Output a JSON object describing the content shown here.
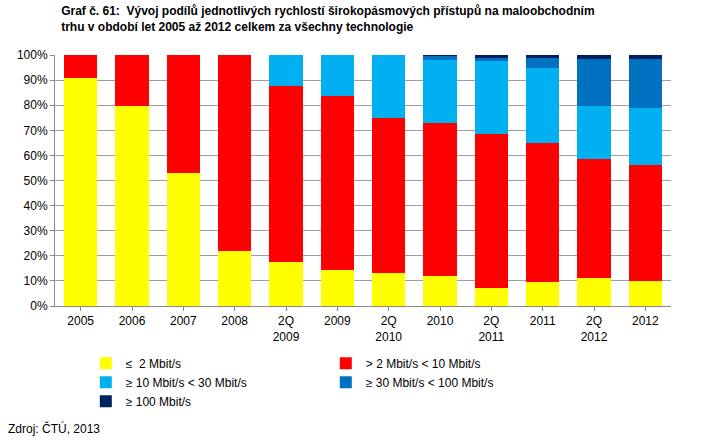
{
  "chart_data": {
    "type": "bar",
    "stacked": true,
    "grid": true,
    "legend": "bottom",
    "title": [
      "Graf č. 61:  Vývoj podílů jednotlivých rychlostí širokopásmových přístupů na maloobchodním",
      "trhu v období let 2005 až 2012 celkem za všechny technologie"
    ],
    "annotations": [
      {
        "text": "Zdroj: ČTÚ, 2013"
      }
    ],
    "categories": [
      "2005",
      "2006",
      "2007",
      "2008",
      "2Q 2009",
      "2009",
      "2Q 2010",
      "2010",
      "2Q 2011",
      "2011",
      "2Q 2012",
      "2012"
    ],
    "ylim": [
      0,
      100
    ],
    "yticks": [
      {
        "value": 0,
        "label": "0%"
      },
      {
        "value": 10,
        "label": "10%"
      },
      {
        "value": 20,
        "label": "20%"
      },
      {
        "value": 30,
        "label": "30%"
      },
      {
        "value": 40,
        "label": "40%"
      },
      {
        "value": 50,
        "label": "50%"
      },
      {
        "value": 60,
        "label": "60%"
      },
      {
        "value": 70,
        "label": "70%"
      },
      {
        "value": 80,
        "label": "80%"
      },
      {
        "value": 90,
        "label": "90%"
      },
      {
        "value": 100,
        "label": "100%"
      }
    ],
    "series": [
      {
        "name": "≤  2 Mbit/s",
        "color": "#FFFF00",
        "values": [
          91,
          79.5,
          53,
          22,
          17.5,
          14.5,
          13,
          12,
          7,
          9.5,
          11,
          10
        ]
      },
      {
        "name": "> 2 Mbit/s < 10 Mbit/s",
        "color": "#FF0000",
        "values": [
          9,
          20.5,
          47,
          78,
          70,
          69,
          62,
          61,
          61.5,
          55.5,
          47.5,
          46
        ]
      },
      {
        "name": "≥ 10 Mbit/s < 30 Mbit/s",
        "color": "#00B0F0",
        "values": [
          0,
          0,
          0,
          0,
          12.5,
          16.5,
          25,
          25,
          29,
          30,
          21,
          23
        ]
      },
      {
        "name": "≥ 30 Mbit/s < 100 Mbit/s",
        "color": "#0070C0",
        "values": [
          0,
          0,
          0,
          0,
          0,
          0,
          0,
          1.5,
          1.5,
          4,
          19,
          19.5
        ]
      },
      {
        "name": "≥ 100 Mbit/s",
        "color": "#002060",
        "values": [
          0,
          0,
          0,
          0,
          0,
          0,
          0,
          0.5,
          1,
          1,
          1.5,
          1.5
        ]
      }
    ]
  }
}
